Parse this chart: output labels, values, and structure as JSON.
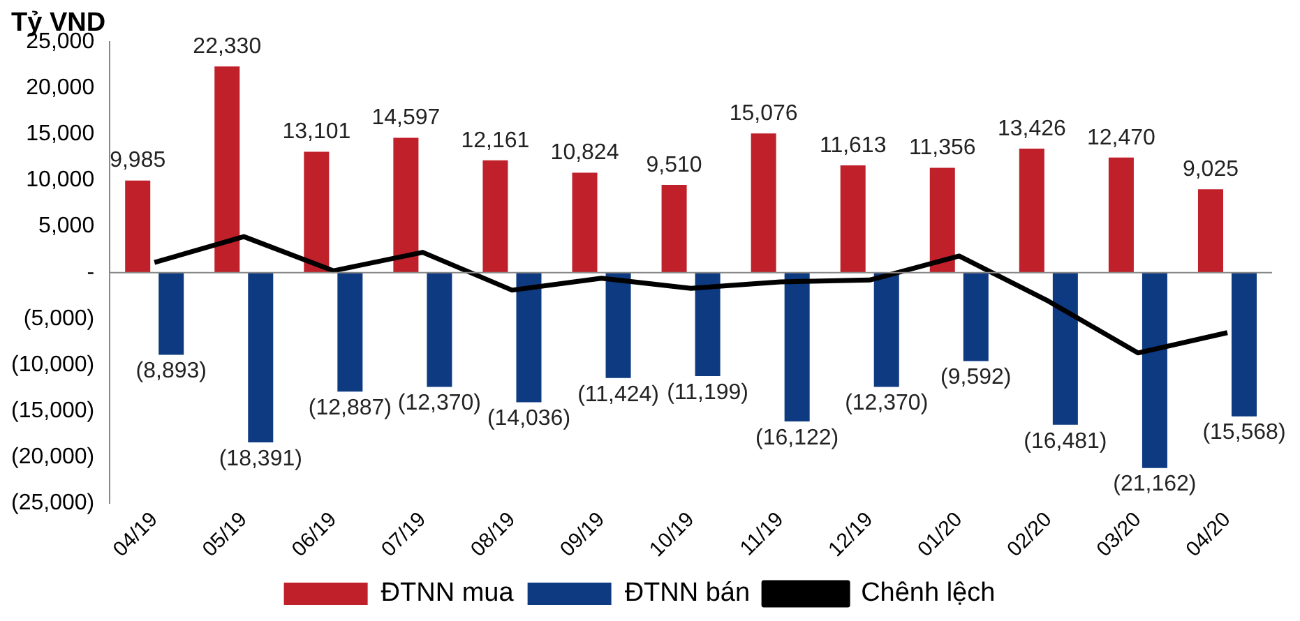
{
  "chart_data": {
    "type": "bar",
    "ylabel": "Tỷ VND",
    "categories": [
      "04/19",
      "05/19",
      "06/19",
      "07/19",
      "08/19",
      "09/19",
      "10/19",
      "11/19",
      "12/19",
      "01/20",
      "02/20",
      "03/20",
      "04/20"
    ],
    "series": [
      {
        "name": "ĐTNN mua",
        "color": "#c0202a",
        "values": [
          9985,
          22330,
          13101,
          14597,
          12161,
          10824,
          9510,
          15076,
          11613,
          11356,
          13426,
          12470,
          9025
        ],
        "value_labels": [
          "9,985",
          "22,330",
          "13,101",
          "14,597",
          "12,161",
          "10,824",
          "9,510",
          "15,076",
          "11,613",
          "11,356",
          "13,426",
          "12,470",
          "9,025"
        ]
      },
      {
        "name": "ĐTNN bán",
        "color": "#0d3a80",
        "values": [
          -8893,
          -18391,
          -12887,
          -12370,
          -14036,
          -11424,
          -11199,
          -16122,
          -12370,
          -9592,
          -16481,
          -21162,
          -15568
        ],
        "value_labels": [
          "(8,893)",
          "(18,391)",
          "(12,887)",
          "(12,370)",
          "(14,036)",
          "(11,424)",
          "(11,199)",
          "(16,122)",
          "(12,370)",
          "(9,592)",
          "(16,481)",
          "(21,162)",
          "(15,568)"
        ]
      },
      {
        "name": "Chênh lệch",
        "type": "line",
        "color": "#000000",
        "values": [
          1100,
          3900,
          200,
          2200,
          -1900,
          -600,
          -1700,
          -1000,
          -800,
          1800,
          -3100,
          -8700,
          -6500
        ]
      }
    ],
    "ylim": [
      -25000,
      25000
    ],
    "yticks": [
      {
        "value": -25000,
        "label": "(25,000)"
      },
      {
        "value": -20000,
        "label": "(20,000)"
      },
      {
        "value": -15000,
        "label": "(15,000)"
      },
      {
        "value": -10000,
        "label": "(10,000)"
      },
      {
        "value": -5000,
        "label": "(5,000)"
      },
      {
        "value": 0,
        "label": "-"
      },
      {
        "value": 5000,
        "label": "5,000"
      },
      {
        "value": 10000,
        "label": "10,000"
      },
      {
        "value": 15000,
        "label": "15,000"
      },
      {
        "value": 20000,
        "label": "20,000"
      },
      {
        "value": 25000,
        "label": "25,000"
      }
    ],
    "ref_lines": [
      {
        "axis": "y",
        "value": 0,
        "color": "#888888"
      }
    ],
    "grid": false,
    "legend": "bottom",
    "marker": "none",
    "line_style": "solid"
  }
}
